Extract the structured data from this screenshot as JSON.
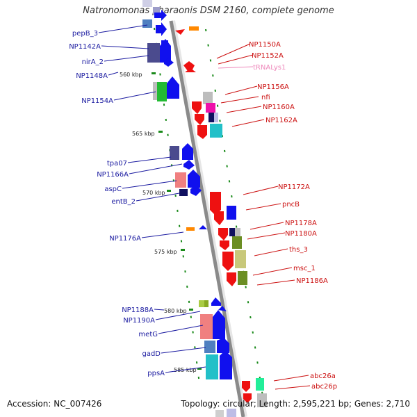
{
  "title": "Natronomonas pharaonis DSM 2160, complete genome",
  "footer": {
    "accession": "Accession: NC_007426",
    "topology": "Topology: circular; Length: 2,595,221 bp; Genes: 2,710"
  },
  "colors": {
    "forward": "#1010ee",
    "reverse": "#ee1111",
    "left_label": "#1a1aa0",
    "right_label": "#cc1111",
    "trna_label": "#ee88bb",
    "backbone": "#8a8a8a",
    "tick": "#1a8a1a"
  },
  "scale_labels": [
    "560 kbp",
    "565 kbp",
    "570 kbp",
    "575 kbp",
    "580 kbp",
    "585 kbp"
  ],
  "left_labels": [
    "pepB_3",
    "NP1142A",
    "nirA_2",
    "NP1148A",
    "NP1154A",
    "tpa07",
    "NP1166A",
    "aspC",
    "entB_2",
    "NP1176A",
    "NP1188A",
    "NP1190A",
    "metG",
    "gadD",
    "ppsA"
  ],
  "right_labels": [
    "NP1150A",
    "NP1152A",
    "tRNALys1",
    "NP1156A",
    "nfi",
    "NP1160A",
    "NP1162A",
    "NP1172A",
    "pncB",
    "NP1178A",
    "NP1180A",
    "ths_3",
    "msc_1",
    "NP1186A",
    "abc26a",
    "abc26p"
  ]
}
